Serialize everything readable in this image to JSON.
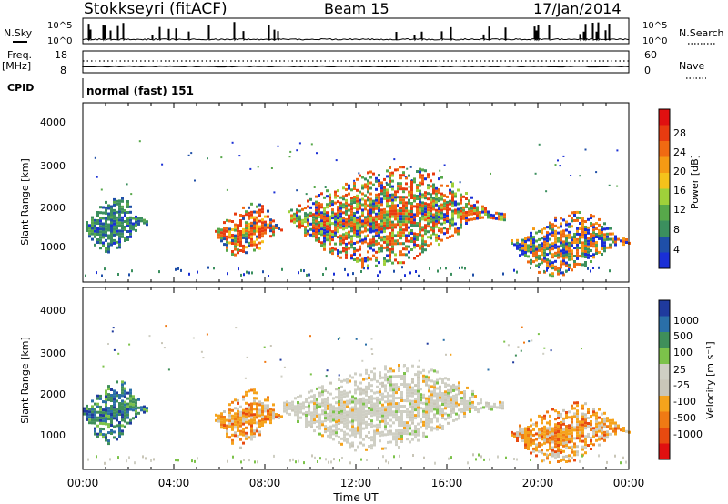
{
  "header": {
    "station": "Stokkseyri (fitACF)",
    "beam": "Beam 15",
    "date": "17/Jan/2014"
  },
  "summary_panels": {
    "nsky_label": "N.Sky",
    "nsearch_label": "N.Search",
    "noise_ticks": [
      "10^5",
      "10^0"
    ],
    "freq_label": "Freq.",
    "freq_units": "[MHz]",
    "freq_ticks": [
      "18",
      "8"
    ],
    "nave_label": "Nave",
    "nave_ticks": [
      "60",
      "0"
    ],
    "cpid_label": "CPID",
    "cpid_value": "normal (fast) 151"
  },
  "colors": {
    "power_scale": [
      "#1a2fd6",
      "#1f4fa8",
      "#3b8f5e",
      "#57a84a",
      "#9fd13a",
      "#f5c21b",
      "#f59a14",
      "#f06a12",
      "#e83b10",
      "#e01010"
    ],
    "velocity_scale": [
      "#1f3a9e",
      "#2a6fa8",
      "#3f8f5a",
      "#7cc24a",
      "#cfcfc4",
      "#c9c6b8",
      "#f5a31c",
      "#f07a14",
      "#e84a10",
      "#e01010"
    ]
  },
  "chart_data": [
    {
      "type": "heatmap",
      "panel": "power",
      "ylabel": "Slant Range [km]",
      "yticks": [
        "4000",
        "3000",
        "2000",
        "1000"
      ],
      "ylim": [
        200,
        4500
      ],
      "xlim": [
        "00:00",
        "24:00"
      ],
      "colorbar_label": "Power [dB]",
      "colorbar_ticks": [
        "28",
        "24",
        "20",
        "16",
        "12",
        "8",
        "4"
      ],
      "echo_regions": [
        {
          "t_start": 0.0,
          "t_end": 2.8,
          "range_low": 900,
          "range_high": 2300,
          "dominant": "green"
        },
        {
          "t_start": 5.8,
          "t_end": 8.8,
          "range_low": 800,
          "range_high": 2100,
          "dominant": "red-orange"
        },
        {
          "t_start": 9.0,
          "t_end": 18.5,
          "range_low": 600,
          "range_high": 3000,
          "dominant": "orange-red"
        },
        {
          "t_start": 18.8,
          "t_end": 24.0,
          "range_low": 400,
          "range_high": 1900,
          "dominant": "orange"
        }
      ]
    },
    {
      "type": "heatmap",
      "panel": "velocity",
      "ylabel": "Slant Range [km]",
      "yticks": [
        "4000",
        "3000",
        "2000",
        "1000"
      ],
      "ylim": [
        200,
        4500
      ],
      "xlim": [
        "00:00",
        "24:00"
      ],
      "xticks": [
        "00:00",
        "04:00",
        "08:00",
        "12:00",
        "16:00",
        "20:00",
        "00:00"
      ],
      "xlabel": "Time UT",
      "colorbar_label": "Velocity [m s⁻¹]",
      "colorbar_ticks": [
        "1000",
        "500",
        "100",
        "25",
        "-25",
        "-100",
        "-500",
        "-1000"
      ],
      "echo_regions": [
        {
          "t_start": 0.0,
          "t_end": 2.8,
          "range_low": 900,
          "range_high": 2300,
          "dominant": "green"
        },
        {
          "t_start": 5.8,
          "t_end": 8.8,
          "range_low": 800,
          "range_high": 2100,
          "dominant": "orange"
        },
        {
          "t_start": 8.8,
          "t_end": 18.5,
          "range_low": 700,
          "range_high": 2700,
          "dominant": "grey"
        },
        {
          "t_start": 18.8,
          "t_end": 24.0,
          "range_low": 400,
          "range_high": 1800,
          "dominant": "orange"
        }
      ]
    }
  ]
}
